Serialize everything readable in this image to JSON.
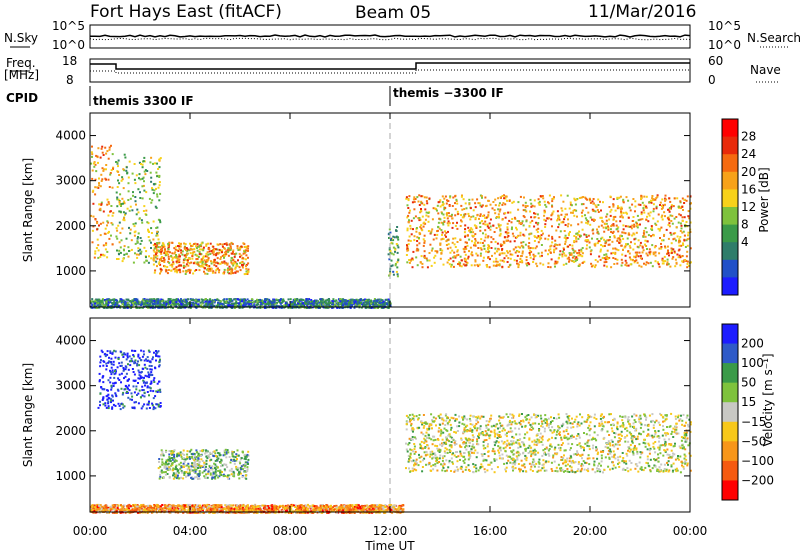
{
  "header": {
    "station": "Fort Hays East (fitACF)",
    "beam": "Beam 05",
    "date": "11/Mar/2016"
  },
  "noise_panel": {
    "left_label": "N.Sky",
    "right_label": "N.Search",
    "ticks": [
      "10^5",
      "10^0"
    ]
  },
  "freq_panel": {
    "left_label_top": "Freq.",
    "left_label_bottom": "[MHz]",
    "left_ticks": [
      "18",
      "8"
    ],
    "right_label": "Nave",
    "right_ticks": [
      "60",
      "0"
    ]
  },
  "cpid": {
    "label": "CPID",
    "segments": [
      {
        "text": "themis 3300 IF",
        "start_hour": 0
      },
      {
        "text": "themis −3300 IF",
        "start_hour": 12
      }
    ]
  },
  "chart_data": [
    {
      "type": "heatmap",
      "name": "power",
      "ylabel": "Slant Range [km]",
      "xlabel": "Time UT",
      "xlim": [
        0,
        24
      ],
      "ylim": [
        200,
        4500
      ],
      "x_ticks": [
        "00:00",
        "04:00",
        "08:00",
        "12:00",
        "16:00",
        "20:00",
        "00:00"
      ],
      "y_ticks": [
        1000,
        2000,
        3000,
        4000
      ],
      "colorbar": {
        "label": "Power [dB]",
        "ticks": [
          "4",
          "8",
          "12",
          "16",
          "20",
          "24",
          "28"
        ],
        "colors": [
          "#1c1cff",
          "#2050c8",
          "#2f7d6a",
          "#3a9a48",
          "#7ec23c",
          "#f7d21a",
          "#f7a21a",
          "#f56a10",
          "#e82a0a",
          "#ff0000"
        ]
      },
      "scatter_regions": [
        {
          "t": [
            0.0,
            0.9
          ],
          "r": [
            1300,
            3800
          ],
          "level": 6
        },
        {
          "t": [
            1.0,
            2.8
          ],
          "r": [
            1200,
            3600
          ],
          "level": 4
        },
        {
          "t": [
            2.5,
            6.3
          ],
          "r": [
            950,
            1650
          ],
          "level": 6
        },
        {
          "t": [
            11.9,
            12.3
          ],
          "r": [
            900,
            2000
          ],
          "level": 3
        },
        {
          "t": [
            12.6,
            24.0
          ],
          "r": [
            1100,
            2700
          ],
          "level": 6
        },
        {
          "t": [
            0.0,
            12.0
          ],
          "r": [
            200,
            400
          ],
          "level": 2
        }
      ]
    },
    {
      "type": "heatmap",
      "name": "velocity",
      "ylabel": "Slant Range [km]",
      "xlabel": "Time UT",
      "xlim": [
        0,
        24
      ],
      "ylim": [
        200,
        4500
      ],
      "x_ticks": [
        "00:00",
        "04:00",
        "08:00",
        "12:00",
        "16:00",
        "20:00",
        "00:00"
      ],
      "y_ticks": [
        1000,
        2000,
        3000,
        4000
      ],
      "colorbar": {
        "label": "Velocity [m s⁻¹]",
        "ticks": [
          "200",
          "100",
          "50",
          "15",
          "−15",
          "−50",
          "−100",
          "−200"
        ],
        "colors": [
          "#1c1cff",
          "#2f5ac8",
          "#3a9a48",
          "#7ec23c",
          "#c8c8c4",
          "#f7c81a",
          "#f7961a",
          "#f55a10",
          "#ff0000"
        ]
      },
      "scatter_regions": [
        {
          "t": [
            0.3,
            2.8
          ],
          "r": [
            2500,
            3800
          ],
          "level": 0
        },
        {
          "t": [
            2.7,
            6.3
          ],
          "r": [
            950,
            1600
          ],
          "level": 3
        },
        {
          "t": [
            12.6,
            24.0
          ],
          "r": [
            1100,
            2400
          ],
          "level": 4
        },
        {
          "t": [
            0.0,
            12.5
          ],
          "r": [
            200,
            380
          ],
          "level": 6
        }
      ]
    }
  ],
  "time_axis": {
    "ticks": [
      "00:00",
      "04:00",
      "08:00",
      "12:00",
      "16:00",
      "20:00",
      "00:00"
    ],
    "label": "Time UT"
  }
}
